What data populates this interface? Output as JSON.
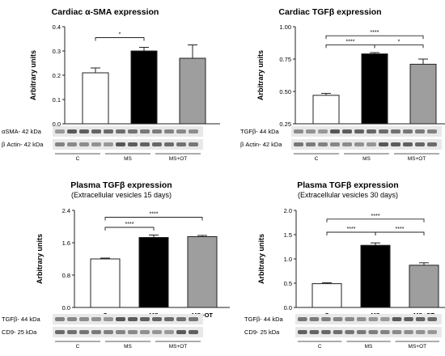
{
  "colors": {
    "control": "#ffffff",
    "ms": "#000000",
    "ms_ot": "#9e9e9e",
    "axis": "#222222",
    "blot_bg": "#e8e8e8",
    "band": "#3a3a3a"
  },
  "chart_data": [
    {
      "type": "bar",
      "title": "Cardiac α-SMA expression",
      "subtitle": "",
      "ylabel": "Arbitrary units",
      "ylim": [
        0,
        0.4
      ],
      "yticks": [
        "0.0",
        "0.1",
        "0.2",
        "0.3",
        "0.4"
      ],
      "categories": [
        "C",
        "MS",
        "MS+OT"
      ],
      "values": [
        0.21,
        0.3,
        0.27
      ],
      "errors": [
        0.02,
        0.015,
        0.055
      ],
      "significance": [
        {
          "from": 0,
          "to": 1,
          "label": "*",
          "y": 0.355
        }
      ],
      "blot": {
        "rows": [
          "αSMA- 42 kDa",
          "β Actin- 42 kDa"
        ],
        "groups": [
          "C",
          "MS",
          "MS+OT"
        ]
      }
    },
    {
      "type": "bar",
      "title": "Cardiac TGFβ expression",
      "subtitle": "",
      "ylabel": "Arbitrary units",
      "ylim": [
        0.25,
        1.0
      ],
      "yticks": [
        "0.25",
        "0.50",
        "0.75",
        "1.00"
      ],
      "categories": [
        "C",
        "MS",
        "MS+OT"
      ],
      "values": [
        0.47,
        0.79,
        0.71
      ],
      "errors": [
        0.015,
        0.01,
        0.04
      ],
      "significance": [
        {
          "from": 0,
          "to": 2,
          "label": "****",
          "y": 0.93
        },
        {
          "from": 0,
          "to": 1,
          "label": "****",
          "y": 0.86
        },
        {
          "from": 1,
          "to": 2,
          "label": "*",
          "y": 0.86
        }
      ],
      "blot": {
        "rows": [
          "TGFβ- 44 kDa",
          "β Actin- 42 kDa"
        ],
        "groups": [
          "C",
          "MS",
          "MS+OT"
        ]
      }
    },
    {
      "type": "bar",
      "title": "Plasma TGFβ expression",
      "subtitle": "(Extracellular vesicles 15 days)",
      "ylabel": "Arbitrary units",
      "ylim": [
        0,
        2.4
      ],
      "yticks": [
        "0.0",
        "0.8",
        "1.6",
        "2.4"
      ],
      "categories": [
        "C",
        "MS",
        "MS+OT"
      ],
      "values": [
        1.2,
        1.73,
        1.75
      ],
      "errors": [
        0.02,
        0.06,
        0.03
      ],
      "significance": [
        {
          "from": 0,
          "to": 2,
          "label": "****",
          "y": 2.23
        },
        {
          "from": 0,
          "to": 1,
          "label": "****",
          "y": 1.98
        }
      ],
      "blot": {
        "rows": [
          "TGFβ- 44 kDa",
          "CD9- 25 kDa"
        ],
        "groups": [
          "C",
          "MS",
          "MS+OT"
        ]
      }
    },
    {
      "type": "bar",
      "title": "Plasma TGFβ expression",
      "subtitle": "(Extracellular vesicles 30 days)",
      "ylabel": "Arbitrary units",
      "ylim": [
        0,
        2.0
      ],
      "yticks": [
        "0.0",
        "0.5",
        "1.0",
        "1.5",
        "2.0"
      ],
      "categories": [
        "C",
        "MS",
        "MS+OT"
      ],
      "values": [
        0.49,
        1.28,
        0.87
      ],
      "errors": [
        0.02,
        0.05,
        0.05
      ],
      "significance": [
        {
          "from": 0,
          "to": 2,
          "label": "****",
          "y": 1.82
        },
        {
          "from": 0,
          "to": 1,
          "label": "****",
          "y": 1.55
        },
        {
          "from": 1,
          "to": 2,
          "label": "****",
          "y": 1.55
        }
      ],
      "blot": {
        "rows": [
          "TGFβ- 44 kDa",
          "CD9- 25 kDa"
        ],
        "groups": [
          "C",
          "MS",
          "MS+OT"
        ]
      }
    }
  ]
}
